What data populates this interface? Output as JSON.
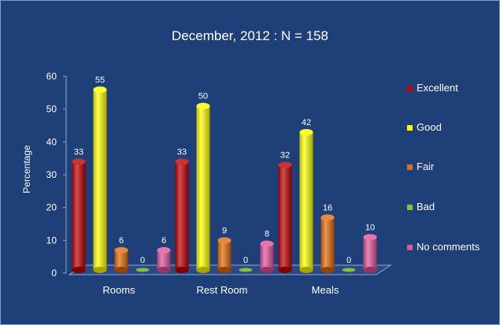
{
  "chart_data": {
    "type": "bar",
    "title": "December, 2012  :  N = 158",
    "ylabel": "Percentage",
    "xlabel": "",
    "ylim": [
      0,
      60
    ],
    "yticks": [
      0,
      10,
      20,
      30,
      40,
      50,
      60
    ],
    "categories": [
      "Rooms",
      "Rest Room",
      "Meals"
    ],
    "series": [
      {
        "name": "Excellent",
        "color": "#c00000",
        "values": [
          33,
          33,
          32
        ]
      },
      {
        "name": "Good",
        "color": "#ffff00",
        "values": [
          55,
          50,
          42
        ]
      },
      {
        "name": "Fair",
        "color": "#e46c0a",
        "values": [
          6,
          9,
          16
        ]
      },
      {
        "name": "Bad",
        "color": "#8fbc3e",
        "values": [
          0,
          0,
          0
        ]
      },
      {
        "name": "No comments",
        "color": "#e0559a",
        "values": [
          6,
          8,
          10
        ]
      }
    ],
    "legend_position": "right",
    "grid": false
  }
}
